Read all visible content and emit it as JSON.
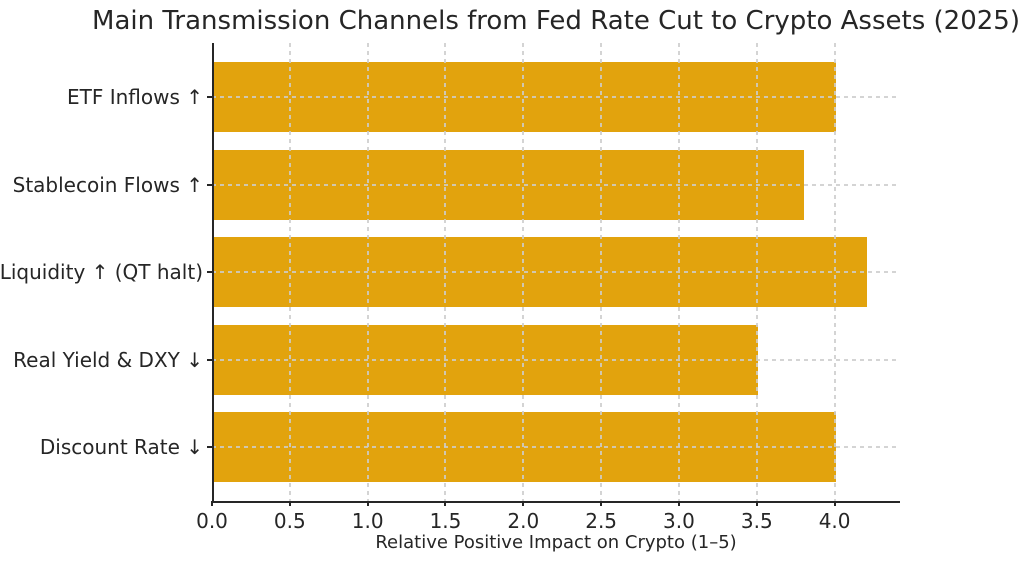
{
  "chart_data": {
    "type": "bar",
    "orientation": "horizontal",
    "title": "Main Transmission Channels from Fed Rate Cut to Crypto Assets (2025)",
    "xlabel": "Relative Positive Impact on Crypto (1–5)",
    "ylabel": "",
    "categories": [
      "ETF Inflows ↑",
      "Stablecoin Flows ↑",
      "Liquidity ↑ (QT halt)",
      "Real Yield & DXY ↓",
      "Discount Rate ↓"
    ],
    "values": [
      4.0,
      3.8,
      4.2,
      3.5,
      4.0
    ],
    "xlim": [
      0,
      4.42
    ],
    "xticks": [
      0.0,
      0.5,
      1.0,
      1.5,
      2.0,
      2.5,
      3.0,
      3.5,
      4.0
    ],
    "xtick_labels": [
      "0.0",
      "0.5",
      "1.0",
      "1.5",
      "2.0",
      "2.5",
      "3.0",
      "3.5",
      "4.0"
    ],
    "grid": true,
    "legend": null,
    "colors": {
      "bar": "#E2A30D",
      "grid": "#CDCDCD",
      "text": "#262626",
      "spine": "#262626",
      "background": "#FFFFFF"
    }
  }
}
